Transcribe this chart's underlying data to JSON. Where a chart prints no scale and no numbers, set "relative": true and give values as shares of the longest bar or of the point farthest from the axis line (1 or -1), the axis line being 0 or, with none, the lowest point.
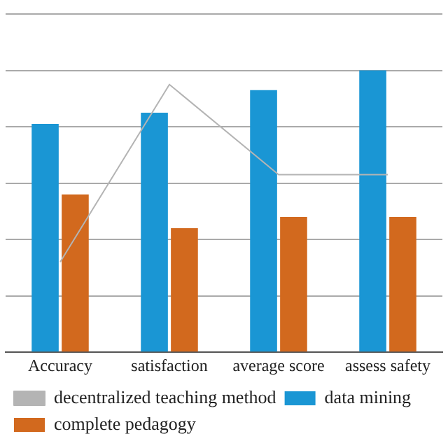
{
  "chart_data": {
    "type": "bar",
    "relative": true,
    "categories": [
      "Accuracy",
      "satisfaction",
      "average score",
      "assess safety"
    ],
    "series": [
      {
        "name": "data mining",
        "color": "#1a96d4",
        "values": [
          0.81,
          0.85,
          0.93,
          1
        ]
      },
      {
        "name": "complete pedagogy",
        "color": "#d2691e",
        "values": [
          0.56,
          0.44,
          0.48,
          0.48
        ]
      },
      {
        "name": "decentralized teaching method",
        "type": "line",
        "color": "#b4b4b4",
        "values": [
          0.32,
          0.95,
          0.63,
          0.63
        ]
      }
    ],
    "grid": "y",
    "legend": "bottom",
    "marker": "none"
  }
}
